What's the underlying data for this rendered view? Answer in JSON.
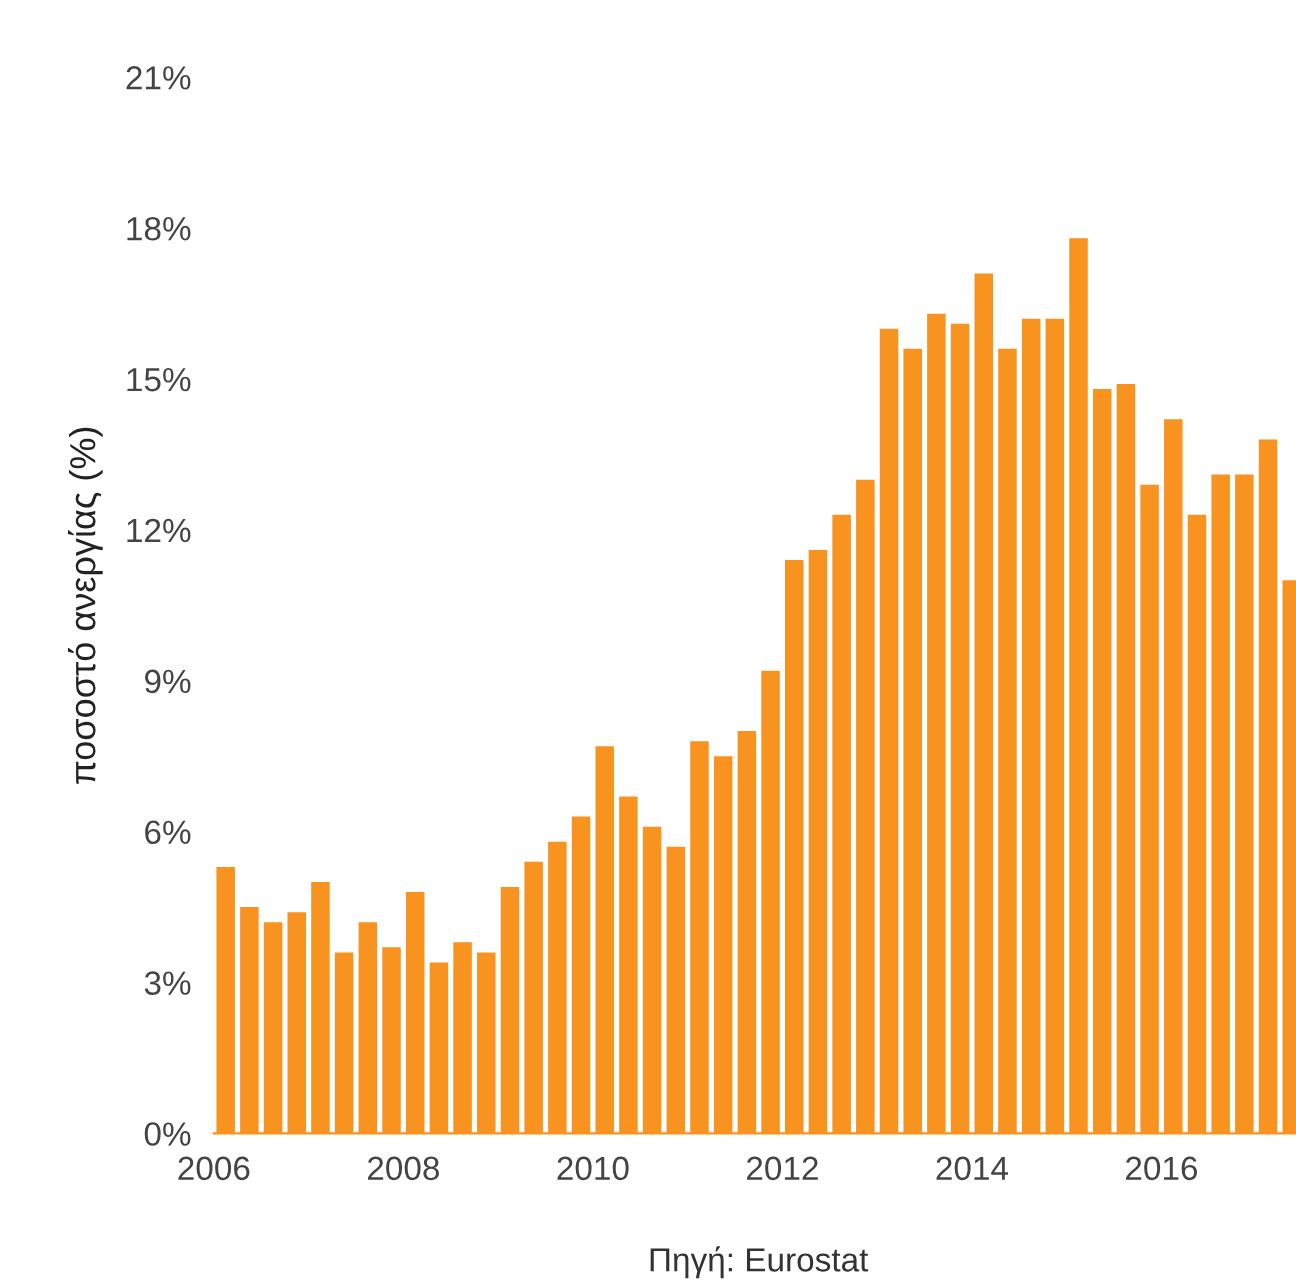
{
  "chart_data": {
    "type": "bar",
    "ylabel": "ποσοστό ανεργίας (%)",
    "annotations": [
      "Πηγή: Eurostat"
    ],
    "color": "#f7931e",
    "x": [
      2006.125,
      2006.375,
      2006.625,
      2006.875,
      2007.125,
      2007.375,
      2007.625,
      2007.875,
      2008.125,
      2008.375,
      2008.625,
      2008.875,
      2009.125,
      2009.375,
      2009.625,
      2009.875,
      2010.125,
      2010.375,
      2010.625,
      2010.875,
      2011.125,
      2011.375,
      2011.625,
      2011.875,
      2012.125,
      2012.375,
      2012.625,
      2012.875,
      2013.125,
      2013.375,
      2013.625,
      2013.875,
      2014.125,
      2014.375,
      2014.625,
      2014.875,
      2015.125,
      2015.375,
      2015.625,
      2015.875,
      2016.125,
      2016.375,
      2016.625,
      2016.875,
      2017.125,
      2017.375
    ],
    "values": [
      5.3,
      4.5,
      4.2,
      4.4,
      5.0,
      3.6,
      4.2,
      3.7,
      4.8,
      3.4,
      3.8,
      3.6,
      4.9,
      5.4,
      5.8,
      6.3,
      7.7,
      6.7,
      6.1,
      5.7,
      7.8,
      7.5,
      8.0,
      9.2,
      11.4,
      11.6,
      12.3,
      13.0,
      16.0,
      15.6,
      16.3,
      16.1,
      17.1,
      15.6,
      16.2,
      16.2,
      17.8,
      14.8,
      14.9,
      12.9,
      14.2,
      12.3,
      13.1,
      13.1,
      13.8,
      11.0
    ],
    "xlim": [
      2006,
      2017.42
    ],
    "xticks": [
      2006,
      2008,
      2010,
      2012,
      2014,
      2016
    ],
    "ylim": [
      0,
      21
    ],
    "yticks": [
      {
        "value": 0,
        "label": "0%"
      },
      {
        "value": 3,
        "label": "3%"
      },
      {
        "value": 6,
        "label": "6%"
      },
      {
        "value": 9,
        "label": "9%"
      },
      {
        "value": 12,
        "label": "12%"
      },
      {
        "value": 15,
        "label": "15%"
      },
      {
        "value": 18,
        "label": "18%"
      },
      {
        "value": 21,
        "label": "21%"
      }
    ],
    "grid": false
  }
}
